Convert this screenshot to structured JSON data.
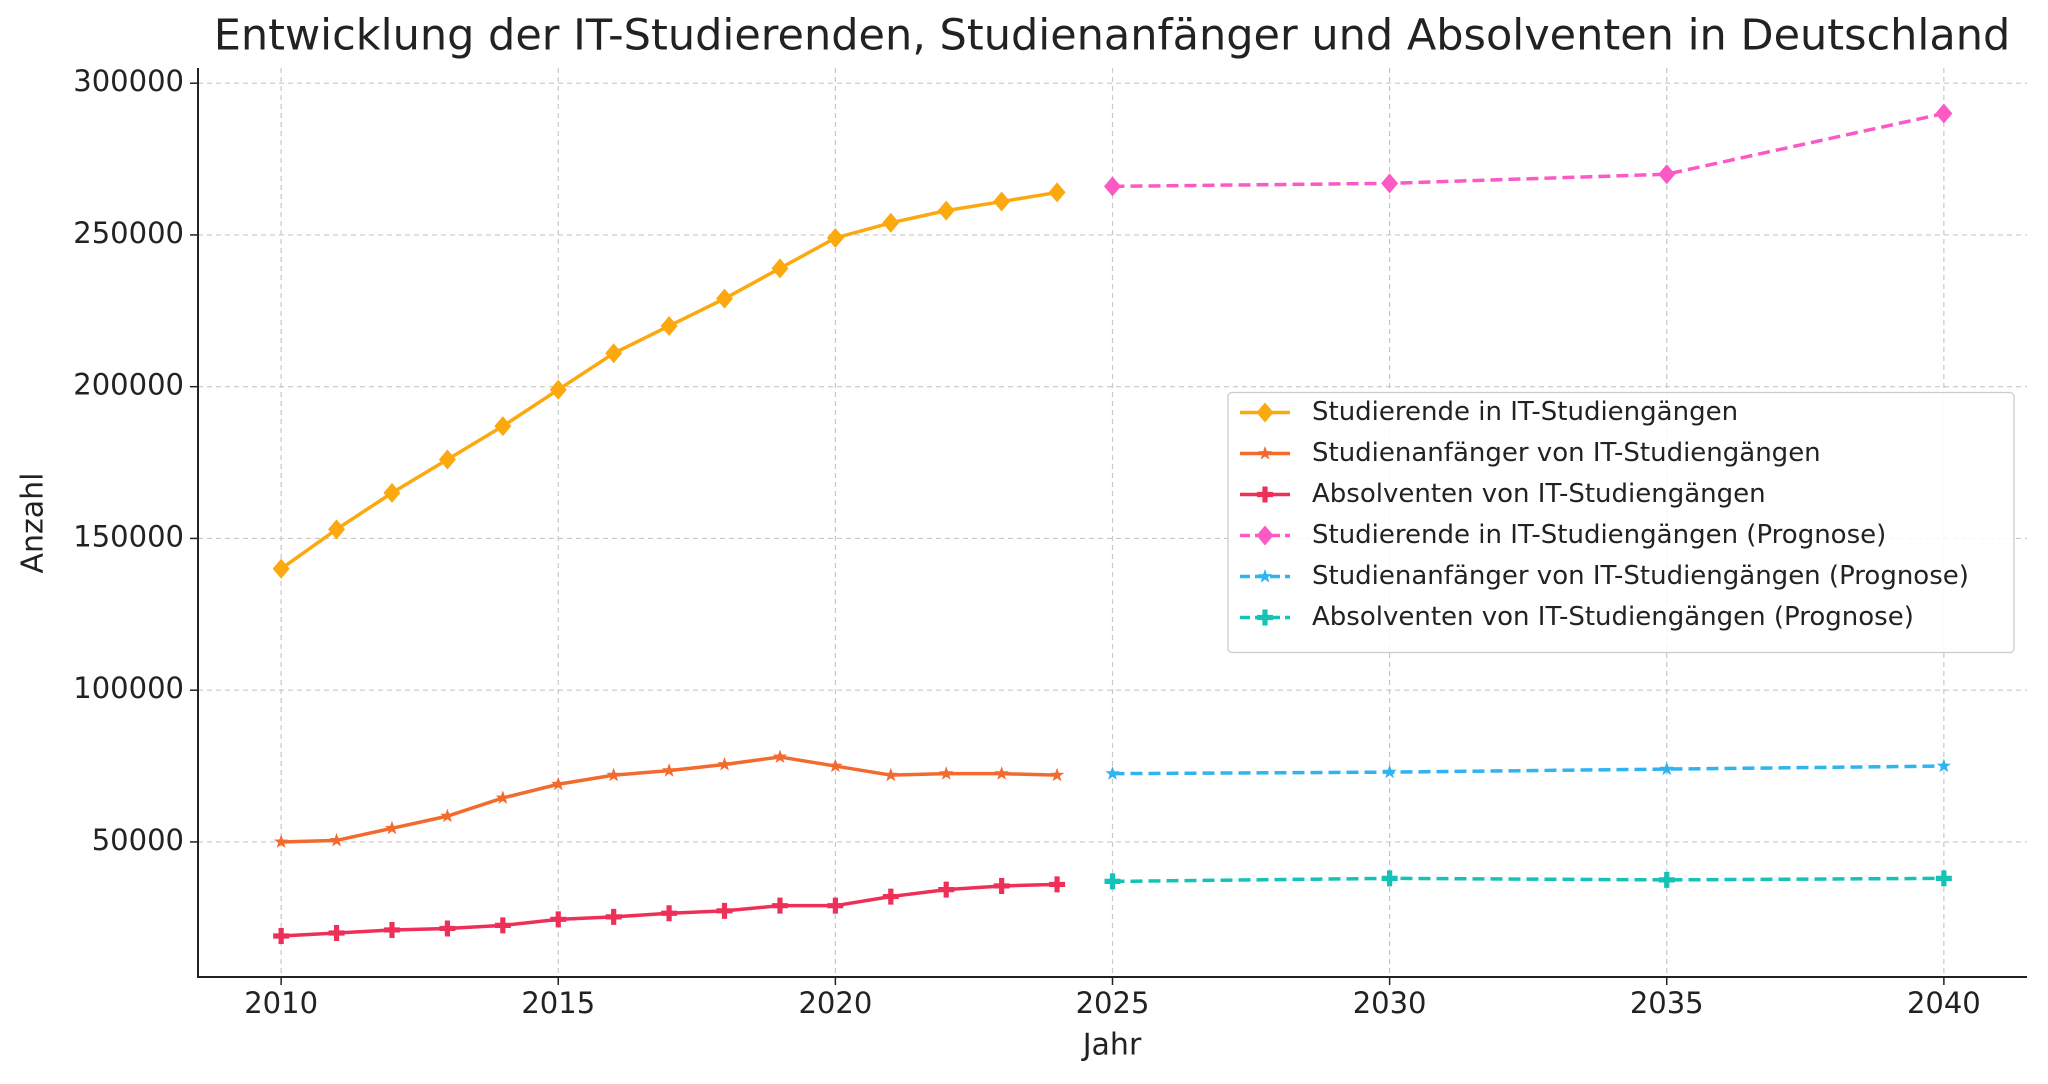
{
  "chart_data": {
    "type": "line",
    "title": "Entwicklung der IT-Studierenden, Studienanfänger und Absolventen in Deutschland",
    "x_label": "Jahr",
    "y_label": "Anzahl",
    "xlim": [
      2008.5,
      2041.5
    ],
    "xticks": [
      2010,
      2015,
      2020,
      2025,
      2030,
      2035,
      2040
    ],
    "ylim": [
      5500,
      305000
    ],
    "yticks": [
      50000,
      100000,
      150000,
      200000,
      250000,
      300000
    ],
    "grid": true,
    "legend": "center right",
    "series": [
      {
        "name": "Studierende in IT-Studiengängen",
        "color": "#fba90f",
        "marker": "diamond",
        "linestyle": "solid",
        "x": [
          2010,
          2011,
          2012,
          2013,
          2014,
          2015,
          2016,
          2017,
          2018,
          2019,
          2020,
          2021,
          2022,
          2023,
          2024
        ],
        "values": [
          140000,
          153000,
          165000,
          176000,
          187000,
          199000,
          211000,
          220000,
          229000,
          239000,
          249000,
          254000,
          258000,
          261000,
          264000
        ]
      },
      {
        "name": "Studienanfänger von IT-Studiengängen",
        "color": "#f26a2e",
        "marker": "star",
        "linestyle": "solid",
        "x": [
          2010,
          2011,
          2012,
          2013,
          2014,
          2015,
          2016,
          2017,
          2018,
          2019,
          2020,
          2021,
          2022,
          2023,
          2024
        ],
        "values": [
          50000,
          50500,
          54500,
          58500,
          64500,
          69000,
          72000,
          73500,
          75500,
          78000,
          75000,
          72000,
          72500,
          72500,
          72000
        ]
      },
      {
        "name": "Absolventen von IT-Studiengängen",
        "color": "#ee3058",
        "marker": "plus",
        "linestyle": "solid",
        "x": [
          2010,
          2011,
          2012,
          2013,
          2014,
          2015,
          2016,
          2017,
          2018,
          2019,
          2020,
          2021,
          2022,
          2023,
          2024
        ],
        "values": [
          19000,
          20000,
          21000,
          21500,
          22500,
          24500,
          25300,
          26500,
          27300,
          29000,
          29000,
          32000,
          34300,
          35500,
          36000
        ]
      },
      {
        "name": "Studierende in IT-Studiengängen (Prognose)",
        "color": "#fb5ac5",
        "marker": "diamond",
        "linestyle": "dashed",
        "x": [
          2025,
          2030,
          2035,
          2040
        ],
        "values": [
          266000,
          267000,
          270000,
          290000
        ]
      },
      {
        "name": "Studienanfänger von IT-Studiengängen (Prognose)",
        "color": "#30b4f0",
        "marker": "star",
        "linestyle": "dashed",
        "x": [
          2025,
          2030,
          2035,
          2040
        ],
        "values": [
          72500,
          73000,
          74000,
          75000
        ]
      },
      {
        "name": "Absolventen von IT-Studiengängen (Prognose)",
        "color": "#14c3b6",
        "marker": "plus",
        "linestyle": "dashed",
        "x": [
          2025,
          2030,
          2035,
          2040
        ],
        "values": [
          37000,
          38000,
          37500,
          38000
        ]
      }
    ]
  }
}
